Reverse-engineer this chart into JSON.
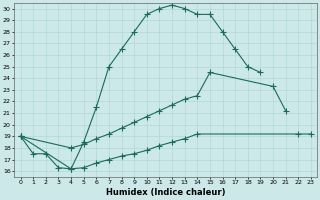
{
  "xlabel": "Humidex (Indice chaleur)",
  "color": "#1a6b5a",
  "background": "#cce8e8",
  "xlim": [
    -0.5,
    23.5
  ],
  "ylim": [
    15.5,
    30.5
  ],
  "line1_x": [
    0,
    1,
    2,
    3,
    4,
    5,
    6,
    7,
    8,
    9,
    10,
    11,
    12,
    13,
    14,
    15,
    16,
    17,
    18,
    19
  ],
  "line1_y": [
    19.0,
    17.5,
    17.5,
    16.3,
    16.2,
    18.5,
    21.5,
    25.0,
    26.5,
    28.0,
    29.5,
    30.0,
    30.3,
    30.0,
    29.5,
    29.5,
    28.0,
    26.5,
    25.0,
    24.5
  ],
  "line2_x": [
    0,
    4,
    5,
    6,
    7,
    8,
    9,
    10,
    11,
    12,
    13,
    14,
    15,
    20,
    21
  ],
  "line2_y": [
    19.0,
    18.0,
    18.3,
    18.8,
    19.2,
    19.7,
    20.2,
    20.7,
    21.2,
    21.7,
    22.2,
    22.5,
    24.5,
    23.3,
    21.2
  ],
  "line3_x": [
    0,
    4,
    5,
    6,
    7,
    8,
    9,
    10,
    11,
    12,
    13,
    14,
    22,
    23
  ],
  "line3_y": [
    19.0,
    16.2,
    16.3,
    16.7,
    17.0,
    17.3,
    17.5,
    17.8,
    18.2,
    18.5,
    18.8,
    19.2,
    19.2,
    19.2
  ]
}
